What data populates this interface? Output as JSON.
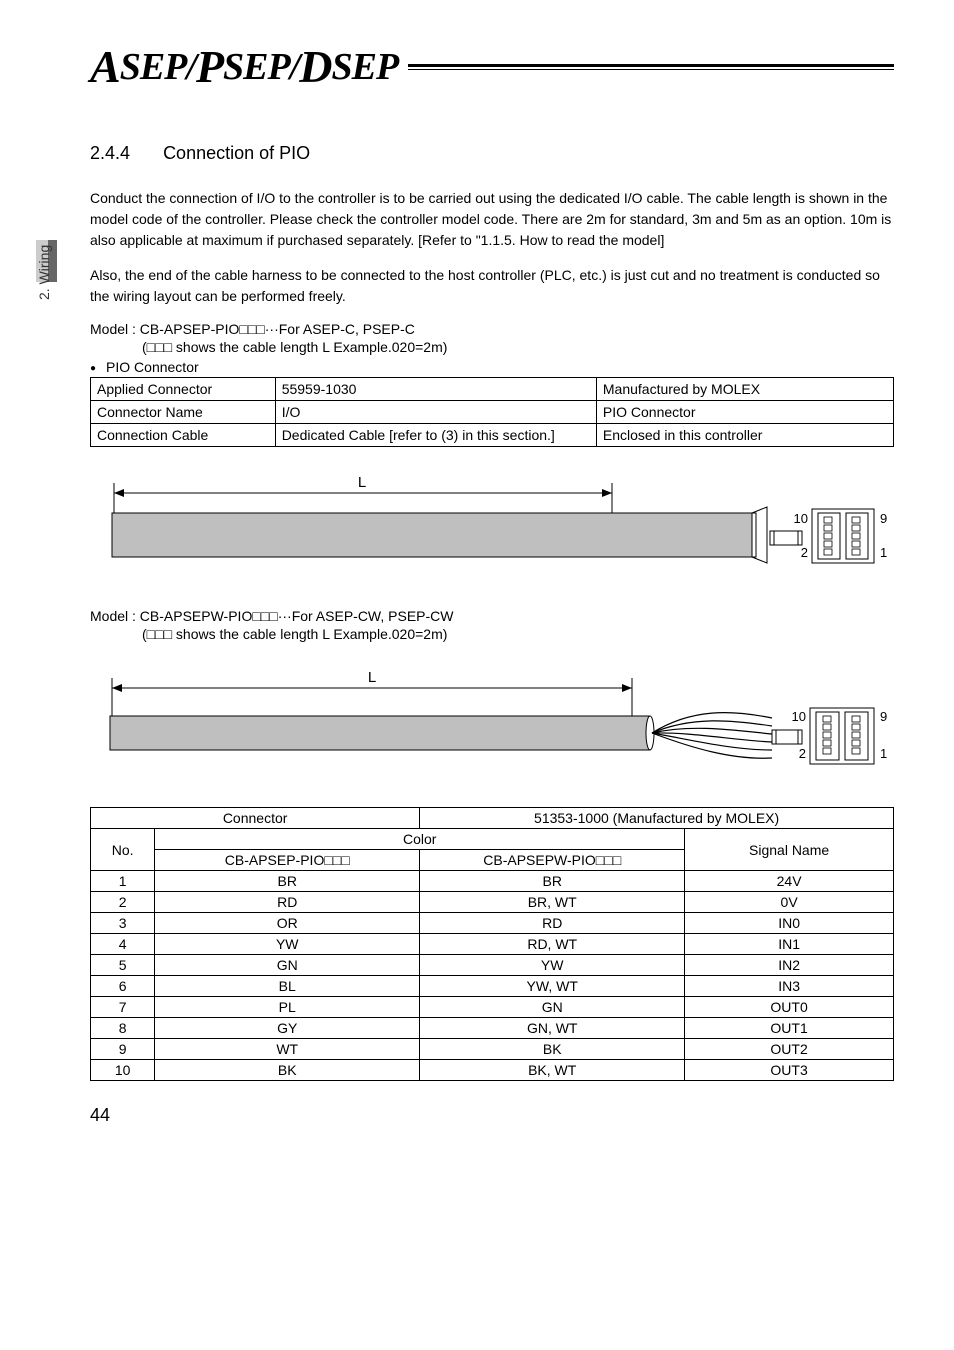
{
  "logo": {
    "a": "A",
    "sep1": "SEP/",
    "p": "P",
    "sep2": "SEP/",
    "d": "D",
    "sep3": "SEP"
  },
  "sideLabel": "2. Wiring",
  "section": {
    "num": "2.4.4",
    "title": "Connection of PIO"
  },
  "para1": "Conduct the connection of I/O to the controller is to be carried out using the dedicated I/O cable. The cable length is shown in the model code of the controller. Please check the controller model code. There are 2m for standard, 3m and 5m as an option. 10m is also applicable at maximum if purchased separately. [Refer to \"1.1.5. How to read the model]",
  "para2": "Also, the end of the cable harness to be connected to the host controller (PLC, etc.) is just cut and no treatment is conducted so the wiring layout can be performed freely.",
  "model1": "Model : CB-APSEP-PIO□□□···For ASEP-C, PSEP-C",
  "model1sub": "(□□□ shows the cable length L  Example.020=2m)",
  "bullet1": "PIO Connector",
  "infoTable": {
    "r1c1": "Applied Connector",
    "r1c2": "55959-1030",
    "r1c3": "Manufactured by MOLEX",
    "r2c1": "Connector Name",
    "r2c2": "I/O",
    "r2c3": "PIO Connector",
    "r3c1": "Connection Cable",
    "r3c2": "Dedicated Cable [refer to (3) in this section.]",
    "r3c3": "Enclosed in this controller"
  },
  "diagLabels": {
    "L": "L",
    "p10": "10",
    "p9": "9",
    "p2": "2",
    "p1": "1"
  },
  "model2": "Model : CB-APSEPW-PIO□□□···For ASEP-CW, PSEP-CW",
  "model2sub": "(□□□ shows the cable length L  Example.020=2m)",
  "pinsHeader": {
    "connector": "Connector",
    "molex": "51353-1000 (Manufactured by MOLEX)",
    "no": "No.",
    "color": "Color",
    "colA": "CB-APSEP-PIO□□□",
    "colB": "CB-APSEPW-PIO□□□",
    "signal": "Signal Name"
  },
  "pins": [
    {
      "no": "1",
      "a": "BR",
      "b": "BR",
      "sig": "24V"
    },
    {
      "no": "2",
      "a": "RD",
      "b": "BR, WT",
      "sig": "0V"
    },
    {
      "no": "3",
      "a": "OR",
      "b": "RD",
      "sig": "IN0"
    },
    {
      "no": "4",
      "a": "YW",
      "b": "RD, WT",
      "sig": "IN1"
    },
    {
      "no": "5",
      "a": "GN",
      "b": "YW",
      "sig": "IN2"
    },
    {
      "no": "6",
      "a": "BL",
      "b": "YW, WT",
      "sig": "IN3"
    },
    {
      "no": "7",
      "a": "PL",
      "b": "GN",
      "sig": "OUT0"
    },
    {
      "no": "8",
      "a": "GY",
      "b": "GN, WT",
      "sig": "OUT1"
    },
    {
      "no": "9",
      "a": "WT",
      "b": "BK",
      "sig": "OUT2"
    },
    {
      "no": "10",
      "a": "BK",
      "b": "BK, WT",
      "sig": "OUT3"
    }
  ],
  "pageNum": "44",
  "colors": {
    "cableFill": "#bfbfbf",
    "cableStroke": "#000000",
    "tabDark": "#666666",
    "tabLight": "#cccccc"
  }
}
